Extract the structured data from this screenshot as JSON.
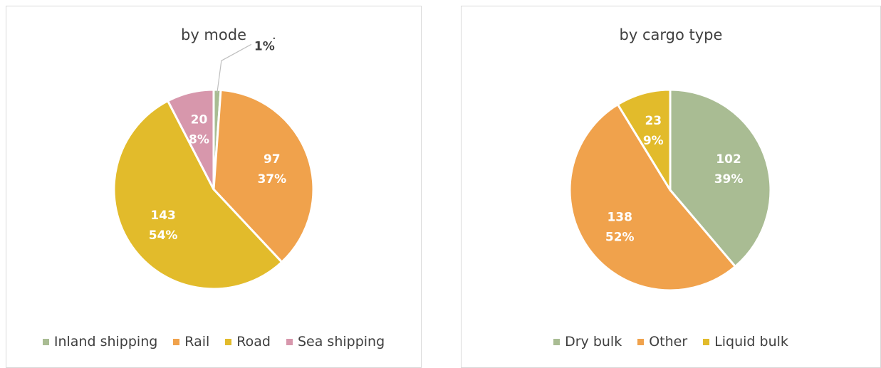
{
  "chart_data": [
    {
      "type": "pie",
      "title": "by mode",
      "categories": [
        "Inland shipping",
        "Rail",
        "Road",
        "Sea shipping"
      ],
      "values": [
        3,
        97,
        143,
        20
      ],
      "data_labels": [
        {
          "value": "",
          "percent": "1%"
        },
        {
          "value": "97",
          "percent": "37%"
        },
        {
          "value": "143",
          "percent": "54%"
        },
        {
          "value": "20",
          "percent": "8%"
        }
      ],
      "colors": [
        "#a9bc93",
        "#f0a24c",
        "#e2bb2b",
        "#d797ac"
      ],
      "legend_position": "bottom"
    },
    {
      "type": "pie",
      "title": "by cargo type",
      "categories": [
        "Dry bulk",
        "Other",
        "Liquid bulk"
      ],
      "values": [
        102,
        138,
        23
      ],
      "data_labels": [
        {
          "value": "102",
          "percent": "39%"
        },
        {
          "value": "138",
          "percent": "52%"
        },
        {
          "value": "23",
          "percent": "9%"
        }
      ],
      "colors": [
        "#a9bc93",
        "#f0a24c",
        "#e2bb2b"
      ],
      "legend_position": "bottom"
    }
  ]
}
